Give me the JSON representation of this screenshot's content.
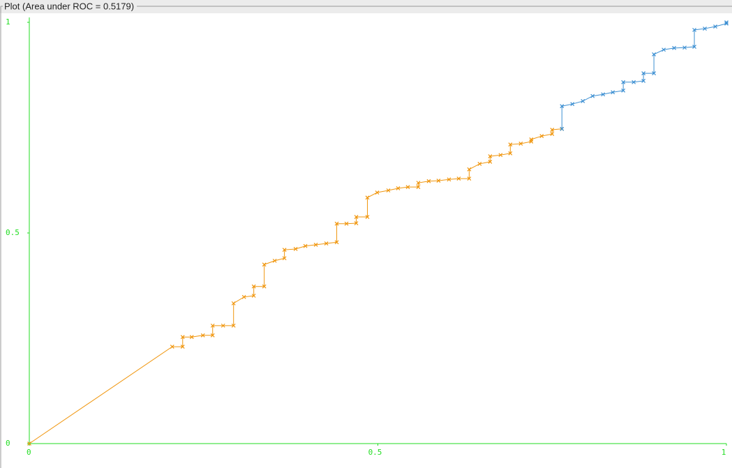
{
  "chart_data": {
    "type": "line",
    "title": "Plot (Area under ROC = 0.5179)",
    "xlim": [
      0,
      1
    ],
    "ylim": [
      0,
      1
    ],
    "xticks": [
      0,
      0.5,
      1
    ],
    "yticks": [
      0,
      0.5,
      1
    ],
    "axis_color": "#22dd22",
    "series": [
      {
        "color": "#f0960e",
        "x": [
          0,
          0.205,
          0.22,
          0.22,
          0.233,
          0.249,
          0.263,
          0.263,
          0.278,
          0.293,
          0.293,
          0.308,
          0.322,
          0.322,
          0.337,
          0.337,
          0.352,
          0.366,
          0.366,
          0.382,
          0.396,
          0.411,
          0.426,
          0.441,
          0.441,
          0.455,
          0.469,
          0.469,
          0.485,
          0.485,
          0.499,
          0.515,
          0.529,
          0.543,
          0.558,
          0.558,
          0.573,
          0.587,
          0.602,
          0.616,
          0.631,
          0.631,
          0.646,
          0.661,
          0.661,
          0.676,
          0.69,
          0.69,
          0.705,
          0.72,
          0.72,
          0.735,
          0.75,
          0.75,
          0.764
        ],
        "values": [
          0,
          0.23,
          0.23,
          0.253,
          0.253,
          0.257,
          0.257,
          0.28,
          0.28,
          0.28,
          0.333,
          0.348,
          0.351,
          0.373,
          0.373,
          0.425,
          0.434,
          0.44,
          0.46,
          0.462,
          0.469,
          0.472,
          0.475,
          0.478,
          0.522,
          0.522,
          0.523,
          0.538,
          0.538,
          0.584,
          0.596,
          0.601,
          0.606,
          0.609,
          0.609,
          0.619,
          0.623,
          0.624,
          0.627,
          0.629,
          0.629,
          0.651,
          0.664,
          0.669,
          0.682,
          0.685,
          0.689,
          0.71,
          0.712,
          0.717,
          0.722,
          0.73,
          0.735,
          0.745,
          0.747
        ]
      },
      {
        "color": "#3c8fd2",
        "x": [
          0.764,
          0.764,
          0.779,
          0.794,
          0.808,
          0.823,
          0.837,
          0.852,
          0.852,
          0.867,
          0.881,
          0.881,
          0.896,
          0.896,
          0.91,
          0.925,
          0.94,
          0.954,
          0.954,
          0.969,
          0.984,
          1,
          1
        ],
        "values": [
          0.747,
          0.801,
          0.806,
          0.813,
          0.825,
          0.829,
          0.834,
          0.838,
          0.858,
          0.858,
          0.861,
          0.879,
          0.879,
          0.924,
          0.935,
          0.939,
          0.94,
          0.942,
          0.982,
          0.985,
          0.99,
          0.997,
          1
        ]
      }
    ]
  }
}
